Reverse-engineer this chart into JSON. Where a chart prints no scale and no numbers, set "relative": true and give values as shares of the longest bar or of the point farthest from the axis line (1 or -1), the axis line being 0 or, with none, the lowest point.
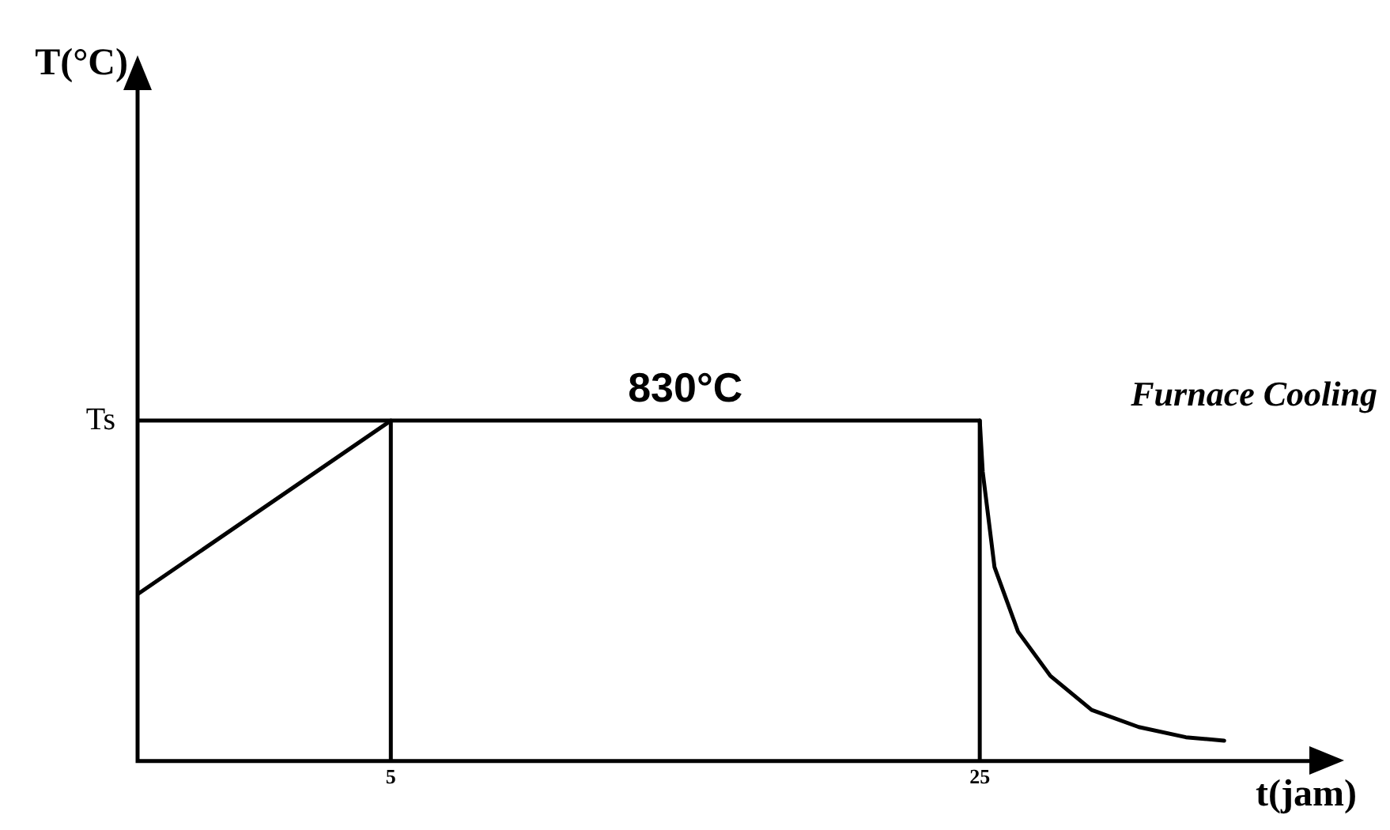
{
  "chart_data": {
    "type": "line",
    "relative": true,
    "xlabel": "t(jam)",
    "xlim": [
      -3.6,
      36.3
    ],
    "xticks": [
      5,
      25
    ],
    "grid": false,
    "legend": false,
    "marker": "none",
    "line_style": "solid",
    "annotations": [
      {
        "text": "Ts",
        "x": -3.6,
        "y": 1
      },
      {
        "text": "830°C",
        "x": 15,
        "y": 1
      },
      "Furnace Cooling",
      "T(°C)"
    ],
    "series": [
      {
        "color": "#000000",
        "x": [
          -3.6,
          5,
          25,
          25.1,
          25.5,
          26.3,
          27.4,
          28.8,
          30.4,
          32.0,
          33.3
        ],
        "values": [
          0.49,
          1,
          1,
          0.85,
          0.57,
          0.38,
          0.25,
          0.15,
          0.1,
          0.07,
          0.06
        ]
      },
      {
        "color": "#000000",
        "x": [
          -3.6,
          5,
          5
        ],
        "values": [
          1,
          1,
          0
        ]
      },
      {
        "color": "#000000",
        "x": [
          25,
          25
        ],
        "values": [
          1,
          0
        ]
      }
    ]
  }
}
